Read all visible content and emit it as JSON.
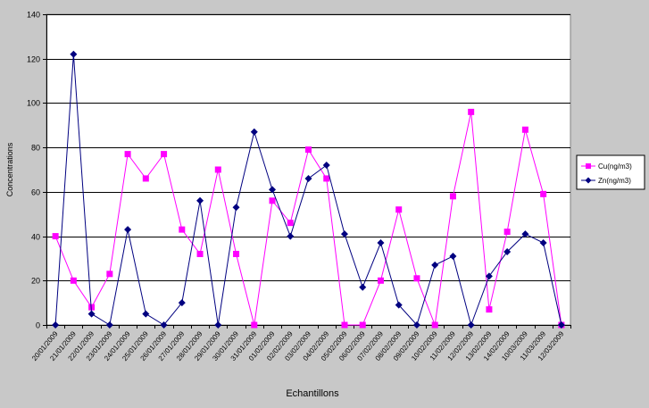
{
  "chart_data": {
    "type": "line",
    "xlabel": "Echantillons",
    "ylabel": "Concentrations",
    "ylim": [
      0,
      140
    ],
    "yticks": [
      0,
      20,
      40,
      60,
      80,
      100,
      120,
      140
    ],
    "grid": true,
    "legend_position": "right",
    "categories": [
      "20/01/2009",
      "21/01/2009",
      "22/01/2009",
      "23/01/2009",
      "24/01/2009",
      "25/01/2009",
      "26/01/2009",
      "27/01/2009",
      "28/01/2009",
      "29/01/2009",
      "30/01/2009",
      "31/01/2009",
      "01/02/2009",
      "02/02/2009",
      "03/02/2009",
      "04/02/2009",
      "05/02/2009",
      "06/02/2009",
      "07/02/2009",
      "08/02/2009",
      "09/02/2009",
      "10/02/2009",
      "11/02/2009",
      "12/02/2009",
      "13/02/2009",
      "14/02/2009",
      "10/03/2009",
      "11/03/2009",
      "12/03/2009"
    ],
    "series": [
      {
        "name": "Cu(ng/m3)",
        "color": "#ff00ff",
        "marker": "square",
        "values": [
          40,
          20,
          8,
          23,
          77,
          66,
          77,
          43,
          32,
          70,
          32,
          0,
          56,
          46,
          79,
          66,
          0,
          0,
          20,
          52,
          21,
          0,
          58,
          96,
          7,
          42,
          88,
          59,
          0
        ]
      },
      {
        "name": "Zn(ng/m3)",
        "color": "#000080",
        "marker": "diamond",
        "values": [
          0,
          122,
          5,
          0,
          43,
          5,
          0,
          10,
          56,
          0,
          53,
          87,
          61,
          40,
          66,
          72,
          41,
          17,
          37,
          9,
          0,
          27,
          31,
          0,
          22,
          33,
          41,
          37,
          0
        ]
      }
    ]
  }
}
